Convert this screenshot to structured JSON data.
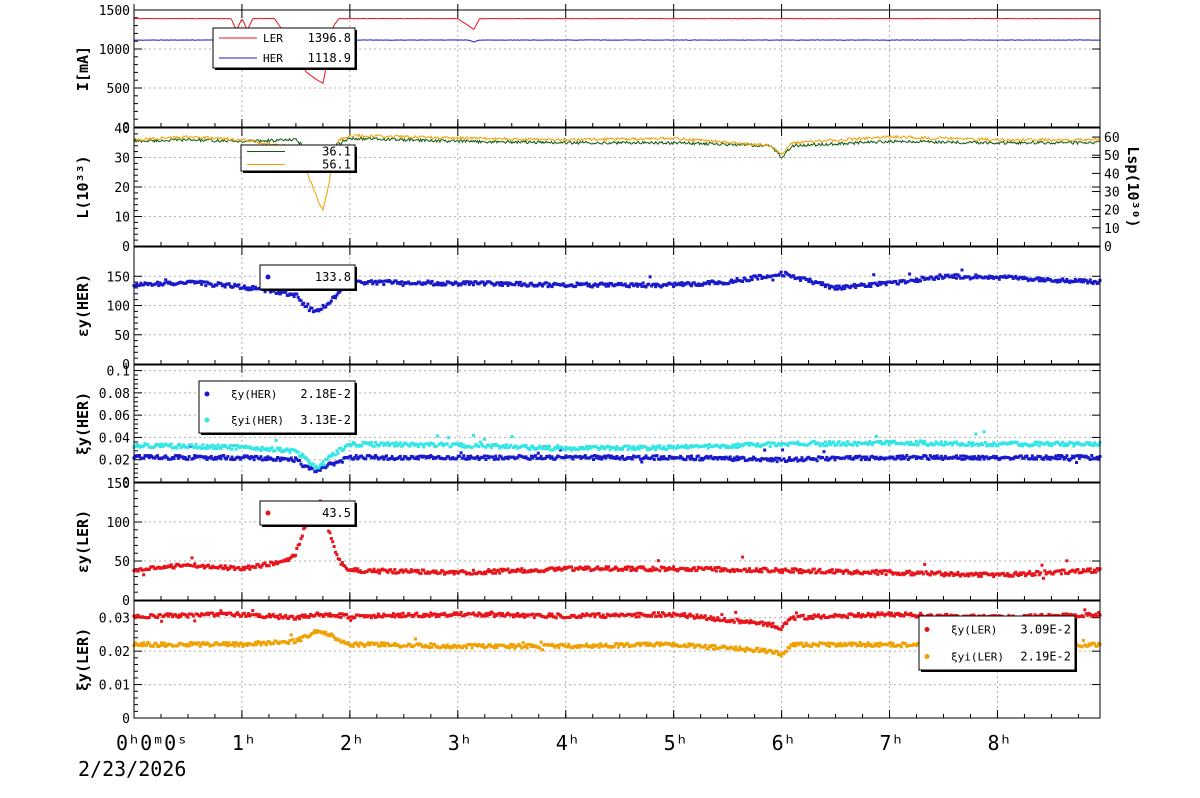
{
  "colors": {
    "red": "#e8141b",
    "blue": "#1a1acc",
    "darkgreen": "#0f5a10",
    "orange": "#f0a000",
    "cyan": "#33e6e6",
    "grid": "#b0b0b0"
  },
  "time_axis": {
    "tick_labels": [
      "0ʰ0ᵐ0ˢ",
      "1ʰ",
      "2ʰ",
      "3ʰ",
      "4ʰ",
      "5ʰ",
      "6ʰ",
      "7ʰ",
      "8ʰ"
    ],
    "date": "2/23/2026"
  },
  "chart_data": [
    {
      "type": "line",
      "ylabel": "I[mA]",
      "ylim": [
        0,
        1500
      ],
      "yticks": [
        "0",
        "500",
        "1000",
        "1500"
      ],
      "xlim": [
        0,
        8.95
      ],
      "grid": true,
      "legend": "top-left",
      "series": [
        {
          "name": "LER",
          "value_label": "1396.8",
          "color": "red",
          "x": [
            0,
            0.9,
            0.95,
            1.0,
            1.05,
            1.1,
            1.3,
            1.4,
            1.5,
            1.6,
            1.7,
            1.75,
            1.8,
            1.85,
            1.9,
            3.0,
            3.15,
            3.2,
            4.5,
            6.0,
            7.9,
            8.6,
            8.95
          ],
          "y": [
            1390,
            1390,
            1240,
            1390,
            1240,
            1390,
            1390,
            1200,
            900,
            700,
            600,
            560,
            900,
            1300,
            1390,
            1390,
            1250,
            1390,
            1390,
            1390,
            1390,
            1390,
            1390
          ]
        },
        {
          "name": "HER",
          "value_label": "1118.9",
          "color": "blue",
          "x": [
            0,
            1.0,
            1.05,
            1.1,
            1.4,
            1.45,
            1.5,
            1.6,
            3.1,
            3.15,
            3.2,
            8.95
          ],
          "y": [
            1115,
            1115,
            1080,
            1115,
            1115,
            1060,
            1115,
            1115,
            1115,
            1090,
            1115,
            1115
          ]
        }
      ]
    },
    {
      "type": "line",
      "ylabel": "L(10³³)",
      "ylim": [
        0,
        40
      ],
      "yticks": [
        "0",
        "10",
        "20",
        "30",
        "40"
      ],
      "y2label": "Lsp(10³⁰)",
      "y2lim": [
        0,
        65
      ],
      "y2ticks": [
        "0",
        "10",
        "20",
        "30",
        "40",
        "50",
        "60"
      ],
      "xlim": [
        0,
        8.95
      ],
      "grid": true,
      "legend": "top-left",
      "series": [
        {
          "name": "",
          "value_label": "36.1",
          "color": "darkgreen",
          "x": [
            0,
            0.5,
            1.0,
            1.5,
            1.6,
            1.7,
            1.8,
            2.0,
            3.0,
            4.0,
            5.0,
            5.9,
            6.0,
            6.1,
            7.0,
            8.0,
            8.95
          ],
          "y": [
            35.5,
            36,
            35.5,
            36,
            33,
            31,
            33,
            36.5,
            35.5,
            35,
            35,
            34,
            30,
            34,
            35.5,
            35,
            35
          ]
        },
        {
          "name": "",
          "value_label": "56.1",
          "color": "orange",
          "x": [
            0,
            0.5,
            1.0,
            1.4,
            1.5,
            1.6,
            1.7,
            1.75,
            1.8,
            1.85,
            1.9,
            2.0,
            3.0,
            4.0,
            5.0,
            5.9,
            6.0,
            6.1,
            7.0,
            8.0,
            8.95
          ],
          "y": [
            36,
            37,
            36,
            34,
            30,
            25,
            16,
            12,
            20,
            30,
            36,
            37.5,
            36.5,
            36,
            36.5,
            34,
            31,
            35,
            37,
            36,
            36
          ]
        }
      ]
    },
    {
      "type": "scatter",
      "ylabel": "εy(HER)",
      "ylim": [
        0,
        200
      ],
      "yticks": [
        "0",
        "50",
        "100",
        "150"
      ],
      "xlim": [
        0,
        8.95
      ],
      "grid": true,
      "legend": "top-left",
      "series": [
        {
          "name": "",
          "value_label": "133.8",
          "color": "blue",
          "x": [
            0,
            0.5,
            1.0,
            1.5,
            1.6,
            1.7,
            1.8,
            1.9,
            2.0,
            3.0,
            4.0,
            5.0,
            5.5,
            6.0,
            6.5,
            7.0,
            7.5,
            8.0,
            8.95
          ],
          "y": [
            135,
            140,
            132,
            118,
            95,
            90,
            100,
            125,
            140,
            138,
            135,
            135,
            140,
            155,
            130,
            138,
            150,
            148,
            140
          ]
        }
      ]
    },
    {
      "type": "scatter",
      "ylabel": "ξy(HER)",
      "ylim": [
        0,
        0.105
      ],
      "yticks": [
        "0",
        "0.02",
        "0.04",
        "0.06",
        "0.08",
        "0.1"
      ],
      "xlim": [
        0,
        8.95
      ],
      "grid": true,
      "legend": "top-left",
      "series": [
        {
          "name": "ξy(HER)",
          "value_label": "2.18E-2",
          "color": "blue",
          "x": [
            0,
            1.0,
            1.5,
            1.6,
            1.7,
            1.8,
            2.0,
            3.0,
            5.0,
            6.0,
            7.0,
            8.95
          ],
          "y": [
            0.022,
            0.022,
            0.02,
            0.013,
            0.01,
            0.015,
            0.022,
            0.022,
            0.022,
            0.02,
            0.022,
            0.022
          ]
        },
        {
          "name": "ξyi(HER)",
          "value_label": "3.13E-2",
          "color": "cyan",
          "x": [
            0,
            1.0,
            1.5,
            1.6,
            1.7,
            1.8,
            2.0,
            3.0,
            4.0,
            5.0,
            6.0,
            7.0,
            8.0,
            8.95
          ],
          "y": [
            0.033,
            0.031,
            0.028,
            0.02,
            0.012,
            0.022,
            0.034,
            0.033,
            0.03,
            0.031,
            0.034,
            0.035,
            0.034,
            0.034
          ]
        }
      ]
    },
    {
      "type": "scatter",
      "ylabel": "εy(LER)",
      "ylim": [
        0,
        150
      ],
      "yticks": [
        "0",
        "50",
        "100",
        "150"
      ],
      "xlim": [
        0,
        8.95
      ],
      "grid": true,
      "legend": "top-left",
      "series": [
        {
          "name": "",
          "value_label": "43.5",
          "color": "red",
          "x": [
            0,
            0.5,
            1.0,
            1.4,
            1.5,
            1.6,
            1.7,
            1.8,
            1.9,
            2.0,
            3.0,
            4.0,
            5.0,
            6.0,
            7.0,
            8.0,
            8.95
          ],
          "y": [
            38,
            45,
            40,
            50,
            60,
            100,
            120,
            90,
            50,
            38,
            35,
            40,
            40,
            38,
            35,
            32,
            38
          ]
        }
      ]
    },
    {
      "type": "scatter",
      "ylabel": "ξy(LER)",
      "ylim": [
        0,
        0.035
      ],
      "yticks": [
        "0",
        "0.01",
        "0.02",
        "0.03"
      ],
      "xlim": [
        0,
        8.95
      ],
      "grid": true,
      "legend": "right",
      "series": [
        {
          "name": "ξy(LER)",
          "value_label": "3.09E-2",
          "color": "red",
          "x": [
            0,
            1.0,
            1.5,
            1.7,
            2.0,
            3.0,
            4.0,
            5.0,
            5.9,
            6.0,
            6.1,
            7.0,
            8.0,
            8.95
          ],
          "y": [
            0.0305,
            0.031,
            0.03,
            0.031,
            0.0305,
            0.031,
            0.0305,
            0.031,
            0.028,
            0.027,
            0.03,
            0.031,
            0.03,
            0.031
          ]
        },
        {
          "name": "ξyi(LER)",
          "value_label": "2.19E-2",
          "color": "orange",
          "x": [
            0,
            1.0,
            1.5,
            1.7,
            1.8,
            2.0,
            3.0,
            4.0,
            5.0,
            5.9,
            6.0,
            6.1,
            7.0,
            8.0,
            8.95
          ],
          "y": [
            0.022,
            0.022,
            0.023,
            0.026,
            0.025,
            0.022,
            0.0215,
            0.0215,
            0.022,
            0.02,
            0.019,
            0.022,
            0.022,
            0.021,
            0.022
          ]
        }
      ]
    }
  ]
}
